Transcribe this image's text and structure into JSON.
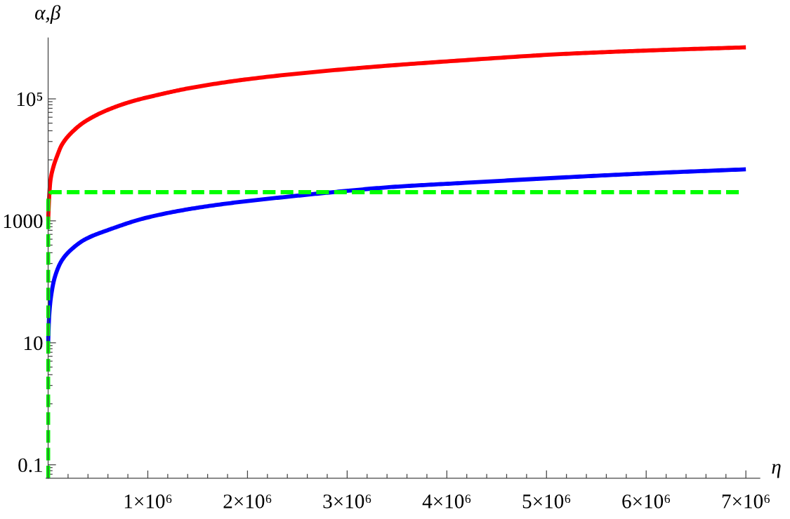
{
  "chart_data": {
    "type": "line",
    "xlabel": "η",
    "ylabel": "α,β",
    "log": "y",
    "xlim": [
      -20000,
      7140000
    ],
    "ylim": [
      0.06,
      1000000
    ],
    "xticks": [
      {
        "value": 200000,
        "label": null
      },
      {
        "value": 400000,
        "label": null
      },
      {
        "value": 600000,
        "label": null
      },
      {
        "value": 800000,
        "label": null
      },
      {
        "value": 1000000,
        "label": "1×10⁶"
      },
      {
        "value": 1200000,
        "label": null
      },
      {
        "value": 1400000,
        "label": null
      },
      {
        "value": 1600000,
        "label": null
      },
      {
        "value": 1800000,
        "label": null
      },
      {
        "value": 2000000,
        "label": "2×10⁶"
      },
      {
        "value": 2200000,
        "label": null
      },
      {
        "value": 2400000,
        "label": null
      },
      {
        "value": 2600000,
        "label": null
      },
      {
        "value": 2800000,
        "label": null
      },
      {
        "value": 3000000,
        "label": "3×10⁶"
      },
      {
        "value": 3200000,
        "label": null
      },
      {
        "value": 3400000,
        "label": null
      },
      {
        "value": 3600000,
        "label": null
      },
      {
        "value": 3800000,
        "label": null
      },
      {
        "value": 4000000,
        "label": "4×10⁶"
      },
      {
        "value": 4200000,
        "label": null
      },
      {
        "value": 4400000,
        "label": null
      },
      {
        "value": 4600000,
        "label": null
      },
      {
        "value": 4800000,
        "label": null
      },
      {
        "value": 5000000,
        "label": "5×10⁶"
      },
      {
        "value": 5200000,
        "label": null
      },
      {
        "value": 5400000,
        "label": null
      },
      {
        "value": 5600000,
        "label": null
      },
      {
        "value": 5800000,
        "label": null
      },
      {
        "value": 6000000,
        "label": "6×10⁶"
      },
      {
        "value": 6200000,
        "label": null
      },
      {
        "value": 6400000,
        "label": null
      },
      {
        "value": 6600000,
        "label": null
      },
      {
        "value": 6800000,
        "label": null
      },
      {
        "value": 7000000,
        "label": "7×10⁶"
      }
    ],
    "yticks": [
      {
        "value": 0.07,
        "label": null
      },
      {
        "value": 0.08,
        "label": null
      },
      {
        "value": 0.09,
        "label": null
      },
      0.1,
      {
        "value": 1,
        "label": null
      },
      {
        "value": 2,
        "label": null
      },
      {
        "value": 3,
        "label": null
      },
      {
        "value": 4,
        "label": null
      },
      {
        "value": 5,
        "label": null
      },
      {
        "value": 6,
        "label": null
      },
      {
        "value": 7,
        "label": null
      },
      {
        "value": 8,
        "label": null
      },
      {
        "value": 9,
        "label": null
      },
      10,
      {
        "value": 100,
        "label": null
      },
      {
        "value": 200,
        "label": null
      },
      {
        "value": 300,
        "label": null
      },
      {
        "value": 400,
        "label": null
      },
      {
        "value": 500,
        "label": null
      },
      {
        "value": 600,
        "label": null
      },
      {
        "value": 700,
        "label": null
      },
      {
        "value": 800,
        "label": null
      },
      {
        "value": 900,
        "label": null
      },
      1000,
      {
        "value": 10000,
        "label": null
      },
      {
        "value": 20000,
        "label": null
      },
      {
        "value": 30000,
        "label": null
      },
      {
        "value": 40000,
        "label": null
      },
      {
        "value": 50000,
        "label": null
      },
      {
        "value": 60000,
        "label": null
      },
      {
        "value": 70000,
        "label": null
      },
      {
        "value": 80000,
        "label": null
      },
      {
        "value": 90000,
        "label": null
      },
      {
        "value": 100000,
        "label": "10⁵"
      }
    ],
    "series": [
      {
        "color": "#ff0000",
        "x": [
          0,
          10000,
          22500,
          46000,
          93000,
          139000,
          257000,
          375000,
          609000,
          847000,
          1079000,
          1400000,
          2010000,
          3090000,
          4180000,
          5170000,
          6000000,
          7000000
        ],
        "values": [
          1000,
          2400,
          4500,
          7000,
          11900,
          17800,
          30300,
          43000,
          67100,
          91600,
          114000,
          148000,
          211000,
          318000,
          431000,
          545000,
          620000,
          700000
        ]
      },
      {
        "color": "#0000ff",
        "x": [
          0,
          10000,
          34000,
          69000,
          139000,
          257000,
          375000,
          609000,
          973000,
          1442000,
          1912000,
          2382000,
          2851000,
          3461000,
          4180000,
          5170000,
          6000000,
          7000000
        ],
        "values": [
          10,
          27,
          65,
          122,
          226,
          367,
          501,
          714,
          1110,
          1585,
          2030,
          2465,
          2945,
          3600,
          4200,
          5150,
          6000,
          7000
        ]
      },
      {
        "color": "#00ff00",
        "line_style": "dashed",
        "x": [
          0,
          0,
          8000,
          18000,
          35000,
          6950000
        ],
        "values": [
          0.06,
          2000,
          2600,
          2850,
          2950,
          2950
        ]
      }
    ]
  }
}
